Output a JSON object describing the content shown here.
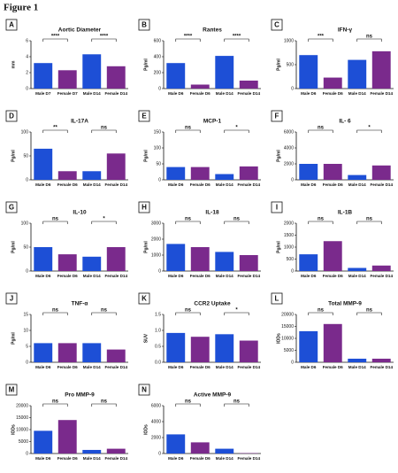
{
  "figure_title": "Figure 1",
  "chart_data": [
    {
      "type": "bar",
      "letter": "A",
      "title": "Aortic Diameter",
      "y_label": "mm",
      "categories": [
        "Male D7",
        "Female D7",
        "Male D14",
        "Female D14"
      ],
      "values": [
        3.2,
        2.3,
        4.3,
        2.8
      ],
      "colors": [
        "#1d4fd6",
        "#7a2a8c",
        "#1d4fd6",
        "#7a2a8c"
      ],
      "ylim": [
        0,
        6
      ],
      "yticks": [
        0,
        2,
        4,
        6
      ],
      "significance": [
        "****",
        "****"
      ]
    },
    {
      "type": "bar",
      "letter": "B",
      "title": "Rantes",
      "y_label": "Pg/ml",
      "categories": [
        "Male D6",
        "Female D6",
        "Male D14",
        "Female D14"
      ],
      "values": [
        320,
        50,
        410,
        100
      ],
      "colors": [
        "#1d4fd6",
        "#7a2a8c",
        "#1d4fd6",
        "#7a2a8c"
      ],
      "ylim": [
        0,
        600
      ],
      "yticks": [
        0,
        200,
        400,
        600
      ],
      "significance": [
        "****",
        "****"
      ]
    },
    {
      "type": "bar",
      "letter": "C",
      "title": "IFN-γ",
      "y_label": "Pg/ml",
      "categories": [
        "Male D6",
        "Female D6",
        "Male D14",
        "Female D14"
      ],
      "values": [
        700,
        230,
        600,
        780
      ],
      "colors": [
        "#1d4fd6",
        "#7a2a8c",
        "#1d4fd6",
        "#7a2a8c"
      ],
      "ylim": [
        0,
        1000
      ],
      "yticks": [
        0,
        500,
        1000
      ],
      "significance": [
        "***",
        "ns"
      ]
    },
    {
      "type": "bar",
      "letter": "D",
      "title": "IL-17A",
      "y_label": "Pg/ml",
      "categories": [
        "Male D6",
        "Female D6",
        "Male D14",
        "Female D14"
      ],
      "values": [
        65,
        18,
        18,
        55
      ],
      "colors": [
        "#1d4fd6",
        "#7a2a8c",
        "#1d4fd6",
        "#7a2a8c"
      ],
      "ylim": [
        0,
        100
      ],
      "yticks": [
        0,
        50,
        100
      ],
      "significance": [
        "**",
        "ns"
      ]
    },
    {
      "type": "bar",
      "letter": "E",
      "title": "MCP-1",
      "y_label": "Pg/ml",
      "categories": [
        "Male D6",
        "Female D6",
        "Male D14",
        "Female D14"
      ],
      "values": [
        40,
        40,
        18,
        42
      ],
      "colors": [
        "#1d4fd6",
        "#7a2a8c",
        "#1d4fd6",
        "#7a2a8c"
      ],
      "ylim": [
        0,
        150
      ],
      "yticks": [
        0,
        50,
        100,
        150
      ],
      "significance": [
        "ns",
        "*"
      ]
    },
    {
      "type": "bar",
      "letter": "F",
      "title": "IL- 6",
      "y_label": "Pg/ml",
      "categories": [
        "Male D6",
        "Female D6",
        "Male D14",
        "Female D14"
      ],
      "values": [
        2000,
        2000,
        600,
        1800
      ],
      "colors": [
        "#1d4fd6",
        "#7a2a8c",
        "#1d4fd6",
        "#7a2a8c"
      ],
      "ylim": [
        0,
        6000
      ],
      "yticks": [
        0,
        2000,
        4000,
        6000
      ],
      "significance": [
        "ns",
        "*"
      ]
    },
    {
      "type": "bar",
      "letter": "G",
      "title": "IL-10",
      "y_label": "Pg/ml",
      "categories": [
        "Male D6",
        "Female D6",
        "Male D14",
        "Female D14"
      ],
      "values": [
        50,
        35,
        30,
        50
      ],
      "colors": [
        "#1d4fd6",
        "#7a2a8c",
        "#1d4fd6",
        "#7a2a8c"
      ],
      "ylim": [
        0,
        100
      ],
      "yticks": [
        0,
        50,
        100
      ],
      "significance": [
        "ns",
        "*"
      ]
    },
    {
      "type": "bar",
      "letter": "H",
      "title": "IL-18",
      "y_label": "Pg/ml",
      "categories": [
        "Male D6",
        "Female D6",
        "Male D14",
        "Female D14"
      ],
      "values": [
        1700,
        1500,
        1200,
        1000
      ],
      "colors": [
        "#1d4fd6",
        "#7a2a8c",
        "#1d4fd6",
        "#7a2a8c"
      ],
      "ylim": [
        0,
        3000
      ],
      "yticks": [
        0,
        1000,
        2000,
        3000
      ],
      "significance": [
        "ns",
        "ns"
      ]
    },
    {
      "type": "bar",
      "letter": "I",
      "title": "IL-1B",
      "y_label": "Pg/ml",
      "categories": [
        "Male D6",
        "Female D6",
        "Male D14",
        "Female D14"
      ],
      "values": [
        700,
        1250,
        130,
        230
      ],
      "colors": [
        "#1d4fd6",
        "#7a2a8c",
        "#1d4fd6",
        "#7a2a8c"
      ],
      "ylim": [
        0,
        2000
      ],
      "yticks": [
        0,
        500,
        1000,
        1500,
        2000
      ],
      "significance": [
        "ns",
        "ns"
      ]
    },
    {
      "type": "bar",
      "letter": "J",
      "title": "TNF-α",
      "y_label": "Pg/ml",
      "categories": [
        "Male D6",
        "Female D6",
        "Male D14",
        "Female D14"
      ],
      "values": [
        6,
        6,
        6,
        4
      ],
      "colors": [
        "#1d4fd6",
        "#7a2a8c",
        "#1d4fd6",
        "#7a2a8c"
      ],
      "ylim": [
        0,
        15
      ],
      "yticks": [
        0,
        5,
        10,
        15
      ],
      "significance": [
        "ns",
        "ns"
      ]
    },
    {
      "type": "bar",
      "letter": "K",
      "title": "CCR2 Uptake",
      "y_label": "SUV",
      "categories": [
        "Male D6",
        "Female D6",
        "Male D14",
        "Female D14"
      ],
      "values": [
        0.92,
        0.8,
        0.88,
        0.68
      ],
      "colors": [
        "#1d4fd6",
        "#7a2a8c",
        "#1d4fd6",
        "#7a2a8c"
      ],
      "ylim": [
        0,
        1.5
      ],
      "yticks": [
        {
          "value": 0,
          "label": "0.0"
        },
        0.5,
        {
          "value": 1,
          "label": "1.0"
        },
        1.5
      ],
      "significance": [
        "ns",
        "*"
      ]
    },
    {
      "type": "bar",
      "letter": "L",
      "title": "Total MMP-9",
      "y_label": "IODs",
      "categories": [
        "Male D6",
        "Female D6",
        "Male D14",
        "Female D14"
      ],
      "values": [
        13000,
        16000,
        1500,
        1500
      ],
      "colors": [
        "#1d4fd6",
        "#7a2a8c",
        "#1d4fd6",
        "#7a2a8c"
      ],
      "ylim": [
        0,
        20000
      ],
      "yticks": [
        0,
        5000,
        10000,
        15000,
        20000
      ],
      "significance": [
        "ns",
        "ns"
      ]
    },
    {
      "type": "bar",
      "letter": "M",
      "title": "Pro MMP-9",
      "y_label": "IODs",
      "categories": [
        "Male D6",
        "Female D6",
        "Male D14",
        "Female D14"
      ],
      "values": [
        9500,
        14000,
        1500,
        2000
      ],
      "colors": [
        "#1d4fd6",
        "#7a2a8c",
        "#1d4fd6",
        "#7a2a8c"
      ],
      "ylim": [
        0,
        20000
      ],
      "yticks": [
        0,
        5000,
        10000,
        15000,
        20000
      ],
      "significance": [
        "ns",
        "ns"
      ]
    },
    {
      "type": "bar",
      "letter": "N",
      "title": "Active MMP-9",
      "y_label": "IODs",
      "categories": [
        "Male D6",
        "Female D6",
        "Male D14",
        "Female D14"
      ],
      "values": [
        2400,
        1400,
        600,
        50
      ],
      "colors": [
        "#1d4fd6",
        "#7a2a8c",
        "#1d4fd6",
        "#7a2a8c"
      ],
      "ylim": [
        0,
        6000
      ],
      "yticks": [
        0,
        2000,
        4000,
        6000
      ],
      "significance": [
        "ns",
        "ns"
      ]
    }
  ]
}
